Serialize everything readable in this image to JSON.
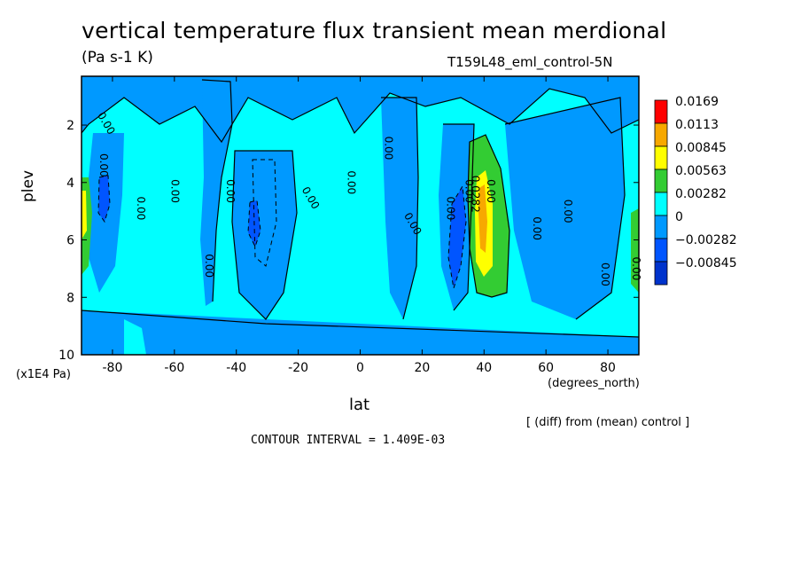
{
  "chart_data": {
    "type": "heatmap",
    "title": "vertical temperature flux transient mean merdional",
    "units": "(Pa s-1 K)",
    "run_label": "T159L48_eml_control-5N",
    "xlabel": "lat",
    "x_units": "(degrees_north)",
    "ylabel": "plev",
    "y_units": "(x1E4 Pa)",
    "x_ticks": [
      "-80",
      "-60",
      "-40",
      "-20",
      "0",
      "20",
      "40",
      "60",
      "80"
    ],
    "x_tick_values": [
      -80,
      -60,
      -40,
      -20,
      0,
      20,
      40,
      60,
      80
    ],
    "y_ticks": [
      "2",
      "4",
      "6",
      "8",
      "10"
    ],
    "y_tick_values": [
      2,
      4,
      6,
      8,
      10
    ],
    "xlim": [
      -90,
      90
    ],
    "ylim": [
      10,
      0.3
    ],
    "colorbar": {
      "labels": [
        "0.0169",
        "0.0113",
        "0.00845",
        "0.00563",
        "0.00282",
        "0",
        "−0.00282",
        "−0.00845"
      ],
      "colors": [
        "#ff0000",
        "#f7a800",
        "#ffff00",
        "#33cc33",
        "#00ffff",
        "#0099ff",
        "#0055ff",
        "#0033cc"
      ]
    },
    "contour_labels": [
      "0.00",
      "0.00",
      "0.00",
      "0.00",
      "0.00",
      "0.00",
      "0.00",
      "0.00",
      "0.00",
      "0.00",
      "0.00",
      "0.00",
      "0.00",
      "0.00",
      "0.00",
      "0.00",
      "0.00",
      "0.0282"
    ],
    "features": [
      {
        "name": "positive maximum",
        "lat": 40,
        "plev_range": [
          3,
          7.5
        ],
        "max": 0.00845
      },
      {
        "name": "negative minimum",
        "lat": 32,
        "plev_range": [
          4,
          8
        ],
        "min": -0.00845
      },
      {
        "name": "negative minimum",
        "lat": -84,
        "plev_range": [
          4,
          6
        ],
        "min": -0.00282
      },
      {
        "name": "negative minimum",
        "lat": -35,
        "plev_range": [
          4.5,
          6
        ],
        "min": -0.00282
      },
      {
        "name": "positive band",
        "lat": -88,
        "plev_range": [
          4,
          7
        ],
        "max": 0.00563
      },
      {
        "name": "positive band",
        "lat": 89,
        "plev_range": [
          5,
          8
        ],
        "max": 0.00282
      }
    ]
  },
  "note": "[ (diff) from (mean) control ]",
  "contour_interval": "CONTOUR INTERVAL = 1.409E-03"
}
